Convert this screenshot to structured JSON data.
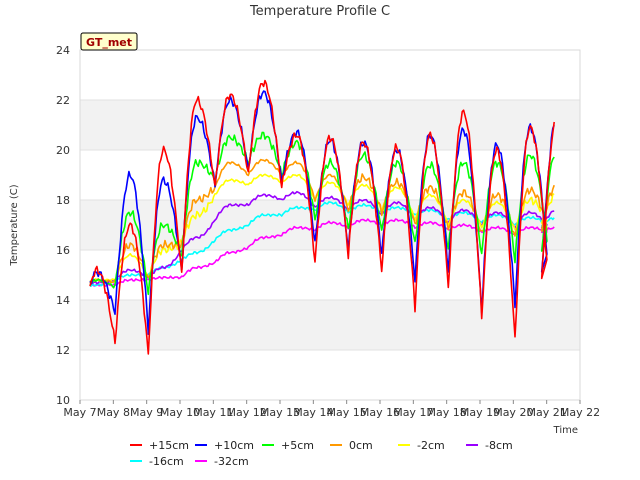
{
  "chart_data": {
    "type": "line",
    "title": "Temperature Profile C",
    "xlabel": "Time",
    "ylabel": "Temperature (C)",
    "badge": "GT_met",
    "ylim": [
      10,
      24
    ],
    "yticks": [
      10,
      12,
      14,
      16,
      18,
      20,
      22,
      24
    ],
    "xlim": [
      7,
      22
    ],
    "xticks": [
      {
        "v": 7,
        "label": "May 7"
      },
      {
        "v": 8,
        "label": "May 8"
      },
      {
        "v": 9,
        "label": "May 9"
      },
      {
        "v": 10,
        "label": "May 10"
      },
      {
        "v": 11,
        "label": "May 11"
      },
      {
        "v": 12,
        "label": "May 12"
      },
      {
        "v": 13,
        "label": "May 13"
      },
      {
        "v": 14,
        "label": "May 14"
      },
      {
        "v": 15,
        "label": "May 15"
      },
      {
        "v": 16,
        "label": "May 16"
      },
      {
        "v": 17,
        "label": "May 17"
      },
      {
        "v": 18,
        "label": "May 18"
      },
      {
        "v": 19,
        "label": "May 19"
      },
      {
        "v": 20,
        "label": "May 20"
      },
      {
        "v": 21,
        "label": "May 21"
      },
      {
        "v": 22,
        "label": "May 22"
      }
    ],
    "x_day_centers": [
      7.4,
      8.4,
      9.4,
      10.4,
      11.4,
      12.4,
      13.4,
      14.4,
      15.4,
      16.4,
      17.4,
      18.4,
      19.4,
      20.4,
      21.2
    ],
    "x_note": "x values are day-of-May; each series lists daily minimum and maximum",
    "series": [
      {
        "name": "+15cm",
        "color": "#ff0000",
        "mins": [
          12.0,
          12.3,
          11.8,
          15.0,
          18.5,
          19.0,
          18.5,
          15.5,
          15.8,
          15.2,
          13.7,
          14.5,
          13.3,
          12.4,
          14.8
        ],
        "maxs": [
          15.2,
          17.0,
          20.0,
          22.0,
          22.2,
          22.7,
          20.6,
          20.5,
          20.3,
          20.1,
          20.6,
          21.5,
          20.0,
          20.9,
          21.2
        ]
      },
      {
        "name": "+10cm",
        "color": "#0000ff",
        "mins": [
          13.0,
          13.5,
          12.8,
          15.2,
          18.6,
          19.2,
          18.7,
          16.2,
          16.0,
          15.8,
          14.8,
          15.2,
          13.6,
          13.8,
          15.0
        ],
        "maxs": [
          15.1,
          19.0,
          18.8,
          21.3,
          22.0,
          22.3,
          20.7,
          20.4,
          20.3,
          20.0,
          20.6,
          20.8,
          20.2,
          20.9,
          21.3
        ]
      },
      {
        "name": "+5cm",
        "color": "#00ff00",
        "mins": [
          14.0,
          14.5,
          14.3,
          15.8,
          18.8,
          19.5,
          19.0,
          17.2,
          16.8,
          16.7,
          16.2,
          16.0,
          15.8,
          15.6,
          16.0
        ],
        "maxs": [
          14.8,
          17.5,
          17.0,
          19.5,
          20.5,
          20.6,
          20.3,
          19.5,
          19.8,
          19.5,
          19.4,
          19.5,
          19.5,
          19.8,
          20.0
        ]
      },
      {
        "name": "0cm",
        "color": "#ff9900",
        "mins": [
          14.3,
          14.7,
          14.8,
          16.2,
          18.5,
          19.0,
          19.0,
          18.0,
          17.6,
          17.5,
          17.0,
          16.8,
          16.6,
          16.5,
          16.8
        ],
        "maxs": [
          14.8,
          16.2,
          16.2,
          18.0,
          19.5,
          19.6,
          19.5,
          19.0,
          18.9,
          18.7,
          18.5,
          18.3,
          18.2,
          18.4,
          18.6
        ]
      },
      {
        "name": "-2cm",
        "color": "#ffff00",
        "mins": [
          14.5,
          14.8,
          14.9,
          16.3,
          18.2,
          18.6,
          18.7,
          18.0,
          17.8,
          17.6,
          17.2,
          17.0,
          16.9,
          16.8,
          17.0
        ],
        "maxs": [
          14.8,
          15.8,
          16.0,
          17.4,
          18.8,
          19.0,
          19.0,
          18.7,
          18.6,
          18.5,
          18.2,
          18.0,
          17.9,
          18.0,
          18.2
        ]
      },
      {
        "name": "-8cm",
        "color": "#9900ff",
        "mins": [
          14.5,
          14.8,
          14.9,
          16.0,
          17.2,
          17.8,
          18.0,
          17.7,
          17.6,
          17.4,
          17.2,
          17.1,
          17.0,
          16.9,
          16.9
        ],
        "maxs": [
          14.7,
          15.2,
          15.3,
          16.5,
          17.8,
          18.2,
          18.3,
          18.1,
          18.0,
          17.9,
          17.7,
          17.6,
          17.5,
          17.5,
          17.6
        ]
      },
      {
        "name": "-16cm",
        "color": "#00ffff",
        "mins": [
          14.5,
          14.8,
          15.0,
          15.6,
          16.4,
          17.0,
          17.4,
          17.6,
          17.5,
          17.5,
          17.4,
          17.2,
          17.1,
          17.0,
          17.0
        ],
        "maxs": [
          14.6,
          15.0,
          15.3,
          15.9,
          16.8,
          17.4,
          17.7,
          17.9,
          17.8,
          17.7,
          17.6,
          17.5,
          17.4,
          17.3,
          17.3
        ]
      },
      {
        "name": "-32cm",
        "color": "#ff00ff",
        "mins": [
          14.5,
          14.6,
          14.8,
          14.9,
          15.5,
          16.1,
          16.6,
          16.8,
          16.9,
          17.0,
          16.9,
          16.8,
          16.7,
          16.6,
          16.7
        ],
        "maxs": [
          14.6,
          14.8,
          14.9,
          15.3,
          15.9,
          16.5,
          16.9,
          17.1,
          17.2,
          17.2,
          17.1,
          17.0,
          16.9,
          16.9,
          16.9
        ]
      }
    ],
    "grid": true,
    "legend": "bottom"
  }
}
